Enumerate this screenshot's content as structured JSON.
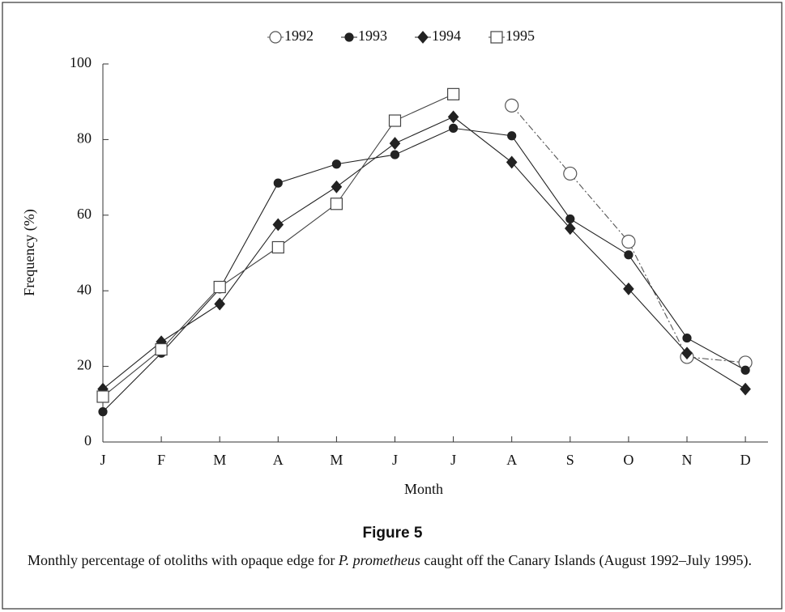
{
  "chart_data": {
    "type": "line",
    "xlabel": "Month",
    "ylabel": "Frequency (%)",
    "categories": [
      "J",
      "F",
      "M",
      "A",
      "M",
      "J",
      "J",
      "A",
      "S",
      "O",
      "N",
      "D"
    ],
    "ylim": [
      0,
      100
    ],
    "yticks": [
      0,
      20,
      40,
      60,
      80,
      100
    ],
    "legend": "top",
    "series": [
      {
        "name": "1992",
        "color": "#555555",
        "marker": "circle-open",
        "values": [
          null,
          null,
          null,
          null,
          null,
          null,
          null,
          89,
          71,
          53,
          22.5,
          21
        ]
      },
      {
        "name": "1993",
        "color": "#222222",
        "marker": "circle-filled",
        "values": [
          8,
          23.5,
          40.5,
          68.5,
          73.5,
          76,
          83,
          81,
          59,
          49.5,
          27.5,
          19
        ]
      },
      {
        "name": "1994",
        "color": "#222222",
        "marker": "diamond-filled",
        "values": [
          14,
          26.5,
          36.5,
          57.5,
          67.5,
          79,
          86,
          74,
          56.5,
          40.5,
          23.5,
          14
        ]
      },
      {
        "name": "1995",
        "color": "#444444",
        "marker": "square-open",
        "values": [
          12,
          24.5,
          41,
          51.5,
          63,
          85,
          92,
          null,
          null,
          null,
          null,
          null
        ]
      }
    ]
  },
  "figure_label": "Figure 5",
  "caption": [
    "Monthly percentage of otoliths with opaque edge for ",
    "P. prometheus",
    " caught off the Canary Islands (August 1992–July 1995)."
  ]
}
